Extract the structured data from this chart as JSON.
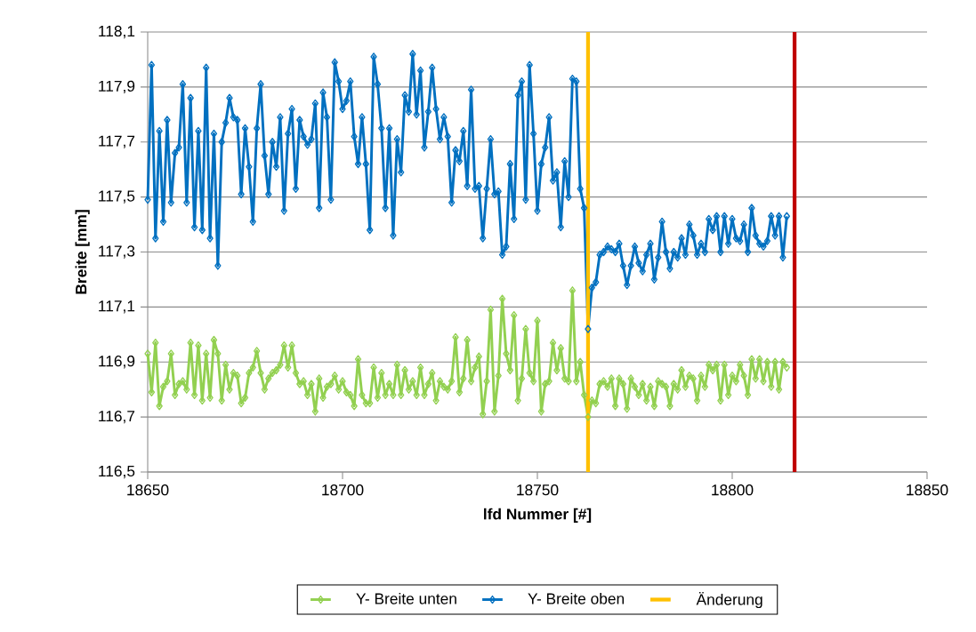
{
  "chart_data": {
    "type": "line",
    "xlabel": "lfd Nummer [#]",
    "ylabel": "Breite [mm]",
    "x": [
      18650,
      18651,
      18652,
      18653,
      18654,
      18655,
      18656,
      18657,
      18658,
      18659,
      18660,
      18661,
      18662,
      18663,
      18664,
      18665,
      18666,
      18667,
      18668,
      18669,
      18670,
      18671,
      18672,
      18673,
      18674,
      18675,
      18676,
      18677,
      18678,
      18679,
      18680,
      18681,
      18682,
      18683,
      18684,
      18685,
      18686,
      18687,
      18688,
      18689,
      18690,
      18691,
      18692,
      18693,
      18694,
      18695,
      18696,
      18697,
      18698,
      18699,
      18700,
      18701,
      18702,
      18703,
      18704,
      18705,
      18706,
      18707,
      18708,
      18709,
      18710,
      18711,
      18712,
      18713,
      18714,
      18715,
      18716,
      18717,
      18718,
      18719,
      18720,
      18721,
      18722,
      18723,
      18724,
      18725,
      18726,
      18727,
      18728,
      18729,
      18730,
      18731,
      18732,
      18733,
      18734,
      18735,
      18736,
      18737,
      18738,
      18739,
      18740,
      18741,
      18742,
      18743,
      18744,
      18745,
      18746,
      18747,
      18748,
      18749,
      18750,
      18751,
      18752,
      18753,
      18754,
      18755,
      18756,
      18757,
      18758,
      18759,
      18760,
      18761,
      18762,
      18763,
      18764,
      18765,
      18766,
      18767,
      18768,
      18769,
      18770,
      18771,
      18772,
      18773,
      18774,
      18775,
      18776,
      18777,
      18778,
      18779,
      18780,
      18781,
      18782,
      18783,
      18784,
      18785,
      18786,
      18787,
      18788,
      18789,
      18790,
      18791,
      18792,
      18793,
      18794,
      18795,
      18796,
      18797,
      18798,
      18799,
      18800,
      18801,
      18802,
      18803,
      18804,
      18805,
      18806,
      18807,
      18808,
      18809,
      18810,
      18811,
      18812,
      18813,
      18814
    ],
    "series": [
      {
        "name": "Y- Breite unten",
        "color": "#92d050",
        "values": [
          116.93,
          116.79,
          116.97,
          116.74,
          116.81,
          116.83,
          116.93,
          116.78,
          116.82,
          116.83,
          116.8,
          116.97,
          116.78,
          116.96,
          116.76,
          116.93,
          116.77,
          116.98,
          116.93,
          116.76,
          116.89,
          116.8,
          116.86,
          116.85,
          116.75,
          116.77,
          116.86,
          116.88,
          116.94,
          116.86,
          116.8,
          116.84,
          116.86,
          116.87,
          116.89,
          116.96,
          116.88,
          116.96,
          116.86,
          116.82,
          116.83,
          116.78,
          116.82,
          116.72,
          116.84,
          116.77,
          116.81,
          116.82,
          116.85,
          116.8,
          116.83,
          116.79,
          116.78,
          116.74,
          116.91,
          116.78,
          116.75,
          116.75,
          116.88,
          116.77,
          116.86,
          116.78,
          116.82,
          116.78,
          116.89,
          116.78,
          116.87,
          116.8,
          116.83,
          116.78,
          116.88,
          116.78,
          116.82,
          116.86,
          116.76,
          116.83,
          116.81,
          116.8,
          116.83,
          116.99,
          116.79,
          116.84,
          116.98,
          116.83,
          116.88,
          116.92,
          116.71,
          116.83,
          117.09,
          116.72,
          116.85,
          117.13,
          116.93,
          116.87,
          117.07,
          116.76,
          116.84,
          117.02,
          116.86,
          116.83,
          117.05,
          116.72,
          116.82,
          116.83,
          116.97,
          116.87,
          116.95,
          116.84,
          116.83,
          117.16,
          116.83,
          116.9,
          116.78,
          116.7,
          116.76,
          116.75,
          116.82,
          116.83,
          116.81,
          116.84,
          116.74,
          116.84,
          116.82,
          116.73,
          116.84,
          116.81,
          116.78,
          116.82,
          116.76,
          116.81,
          116.74,
          116.83,
          116.82,
          116.81,
          116.74,
          116.82,
          116.8,
          116.87,
          116.81,
          116.85,
          116.84,
          116.76,
          116.85,
          116.81,
          116.89,
          116.87,
          116.89,
          116.76,
          116.89,
          116.78,
          116.85,
          116.83,
          116.89,
          116.85,
          116.78,
          116.91,
          116.84,
          116.91,
          116.83,
          116.9,
          116.81,
          116.9,
          116.8,
          116.9,
          116.88
        ]
      },
      {
        "name": "Y- Breite oben",
        "color": "#0070c0",
        "values": [
          117.49,
          117.98,
          117.35,
          117.74,
          117.41,
          117.78,
          117.48,
          117.66,
          117.68,
          117.91,
          117.48,
          117.86,
          117.39,
          117.74,
          117.38,
          117.97,
          117.35,
          117.73,
          117.25,
          117.7,
          117.77,
          117.86,
          117.79,
          117.78,
          117.51,
          117.75,
          117.61,
          117.41,
          117.75,
          117.91,
          117.65,
          117.51,
          117.7,
          117.61,
          117.79,
          117.45,
          117.73,
          117.82,
          117.53,
          117.78,
          117.72,
          117.69,
          117.71,
          117.84,
          117.46,
          117.88,
          117.79,
          117.49,
          117.99,
          117.92,
          117.82,
          117.85,
          117.92,
          117.72,
          117.62,
          117.79,
          117.62,
          117.38,
          118.01,
          117.91,
          117.75,
          117.46,
          117.75,
          117.36,
          117.71,
          117.59,
          117.87,
          117.81,
          118.02,
          117.8,
          117.96,
          117.68,
          117.81,
          117.97,
          117.82,
          117.71,
          117.79,
          117.72,
          117.48,
          117.67,
          117.63,
          117.74,
          117.54,
          117.89,
          117.53,
          117.54,
          117.35,
          117.53,
          117.71,
          117.51,
          117.52,
          117.29,
          117.32,
          117.62,
          117.42,
          117.87,
          117.92,
          117.49,
          117.98,
          117.73,
          117.45,
          117.62,
          117.68,
          117.79,
          117.56,
          117.59,
          117.39,
          117.63,
          117.5,
          117.93,
          117.92,
          117.53,
          117.46,
          117.02,
          117.17,
          117.19,
          117.29,
          117.3,
          117.32,
          117.31,
          117.3,
          117.33,
          117.25,
          117.18,
          117.25,
          117.32,
          117.26,
          117.23,
          117.29,
          117.33,
          117.2,
          117.28,
          117.41,
          117.3,
          117.24,
          117.3,
          117.28,
          117.35,
          117.29,
          117.4,
          117.36,
          117.29,
          117.33,
          117.3,
          117.42,
          117.38,
          117.43,
          117.3,
          117.43,
          117.33,
          117.42,
          117.35,
          117.34,
          117.4,
          117.3,
          117.46,
          117.36,
          117.33,
          117.32,
          117.34,
          117.43,
          117.36,
          117.43,
          117.28,
          117.43
        ]
      }
    ],
    "ref_lines": [
      {
        "axis": "x",
        "value": 18763,
        "label": "Änderung",
        "color": "#ffc000"
      },
      {
        "axis": "x",
        "value": 18816,
        "color": "#c00000"
      }
    ],
    "xlim": [
      18650,
      18850
    ],
    "xticks": [
      18650,
      18700,
      18750,
      18800,
      18850
    ],
    "ylim": [
      116.5,
      118.1
    ],
    "yticks": [
      {
        "value": 116.5,
        "label": "116,5"
      },
      {
        "value": 116.7,
        "label": "116,7"
      },
      {
        "value": 116.9,
        "label": "116,9"
      },
      {
        "value": 117.1,
        "label": "117,1"
      },
      {
        "value": 117.3,
        "label": "117,3"
      },
      {
        "value": 117.5,
        "label": "117,5"
      },
      {
        "value": 117.7,
        "label": "117,7"
      },
      {
        "value": 117.9,
        "label": "117,9"
      },
      {
        "value": 118.1,
        "label": "118,1"
      }
    ],
    "grid": "y",
    "legend": "bottom",
    "marker": "diamond",
    "line_style": "solid"
  }
}
